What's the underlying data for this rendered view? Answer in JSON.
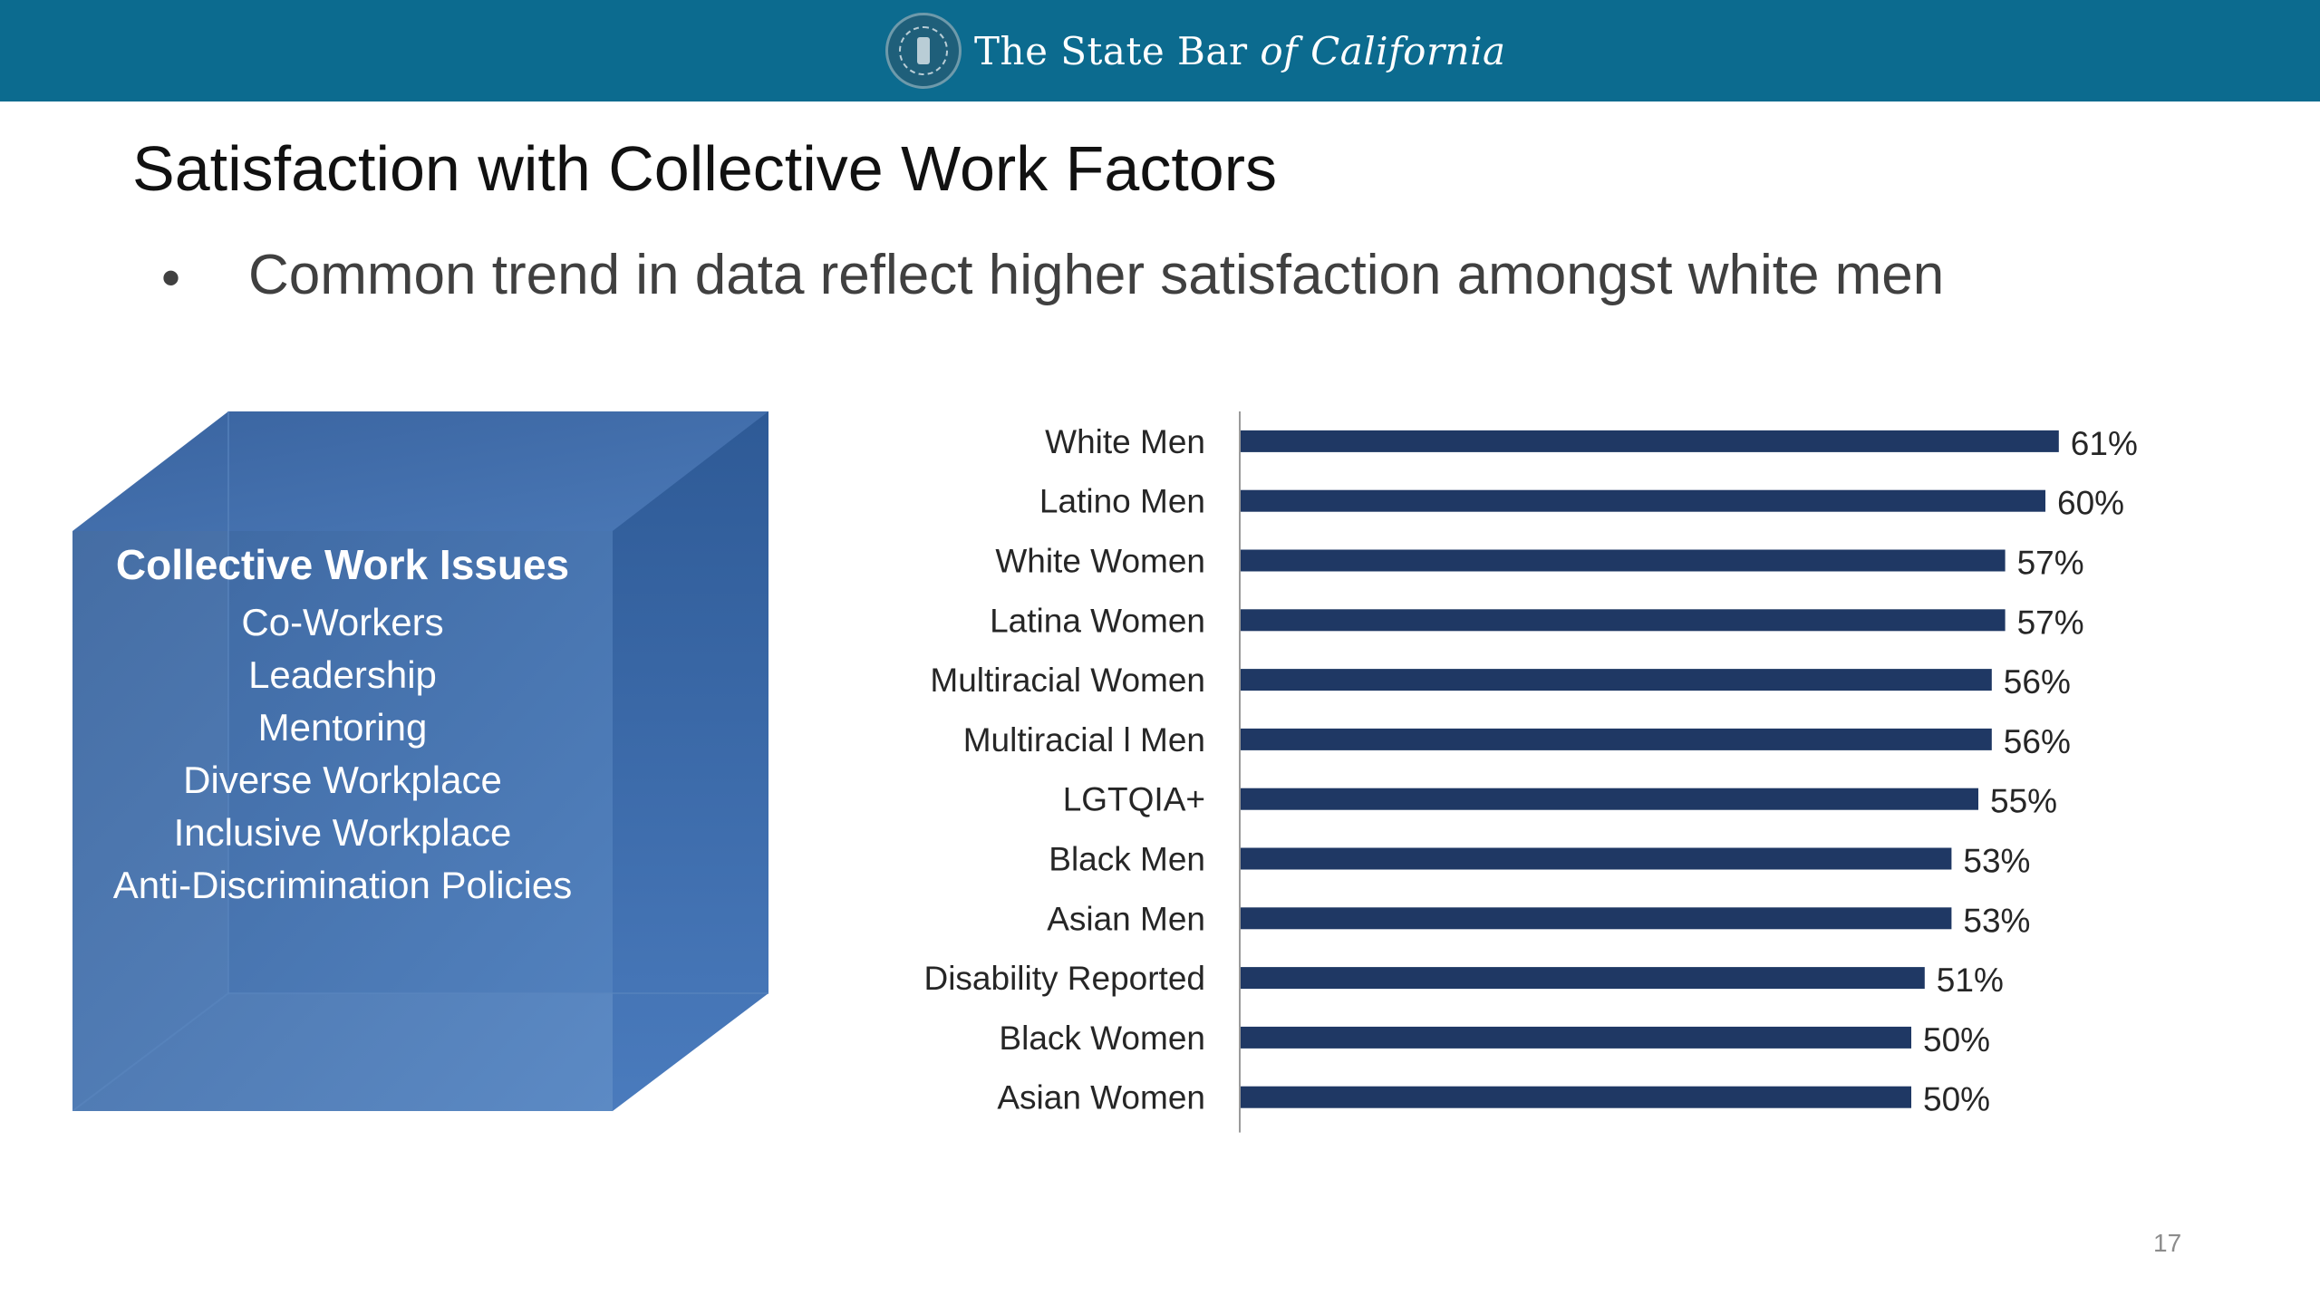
{
  "header": {
    "brand_main": "The State Bar ",
    "brand_italic": "of California",
    "bg_color": "#0c6b8f"
  },
  "slide": {
    "title": "Satisfaction with Collective Work Factors",
    "bullet_symbol": "•",
    "bullet": "Common trend in data reflect higher satisfaction amongst white men",
    "page_number": "17"
  },
  "cube": {
    "heading": "Collective Work Issues",
    "items": [
      "Co-Workers",
      "Leadership",
      "Mentoring",
      "Diverse Workplace",
      "Inclusive Workplace",
      "Anti-Discrimination Policies"
    ],
    "face_color": "#4472a8"
  },
  "chart_data": {
    "type": "bar",
    "orientation": "horizontal",
    "categories": [
      "White Men",
      "Latino Men",
      "White Women",
      "Latina Women",
      "Multiracial Women",
      "Multiracial l Men",
      "LGTQIA+",
      "Black Men",
      "Asian Men",
      "Disability Reported",
      "Black Women",
      "Asian Women"
    ],
    "values": [
      61,
      60,
      57,
      57,
      56,
      56,
      55,
      53,
      53,
      51,
      50,
      50
    ],
    "value_labels": [
      "61%",
      "60%",
      "57%",
      "57%",
      "56%",
      "56%",
      "55%",
      "53%",
      "53%",
      "51%",
      "50%",
      "50%"
    ],
    "bar_color": "#1f3864",
    "grid": false,
    "legend": "none"
  }
}
